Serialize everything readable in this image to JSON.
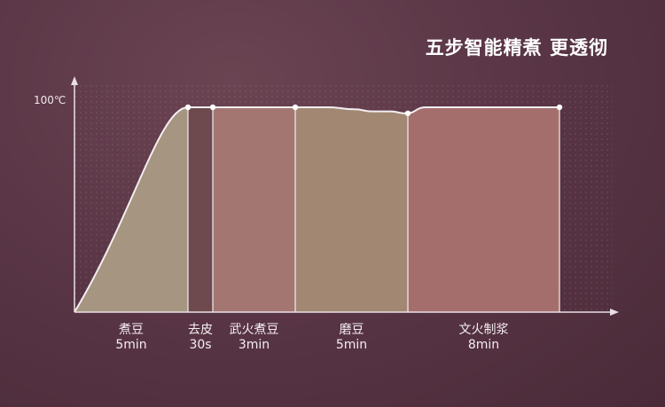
{
  "header": {
    "title": "五步智能精煮 更透彻"
  },
  "chart_data": {
    "type": "area",
    "title": "五步智能精煮 更透彻",
    "ylabel": "",
    "xlabel": "",
    "ytick_label": "100℃",
    "ylim": [
      0,
      100
    ],
    "stages": [
      {
        "name": "煮豆",
        "duration": "5min",
        "color": "#a69581"
      },
      {
        "name": "去皮",
        "duration": "30s",
        "color": "#6e4a4f"
      },
      {
        "name": "武火煮豆",
        "duration": "3min",
        "color": "#a47672"
      },
      {
        "name": "磨豆",
        "duration": "5min",
        "color": "#a28873"
      },
      {
        "name": "文火制浆",
        "duration": "8min",
        "color": "#a46e6d"
      }
    ],
    "curve_temperatures": [
      0,
      100,
      100,
      100,
      100,
      100,
      99,
      98,
      98,
      97,
      100,
      100
    ],
    "grid": true
  }
}
